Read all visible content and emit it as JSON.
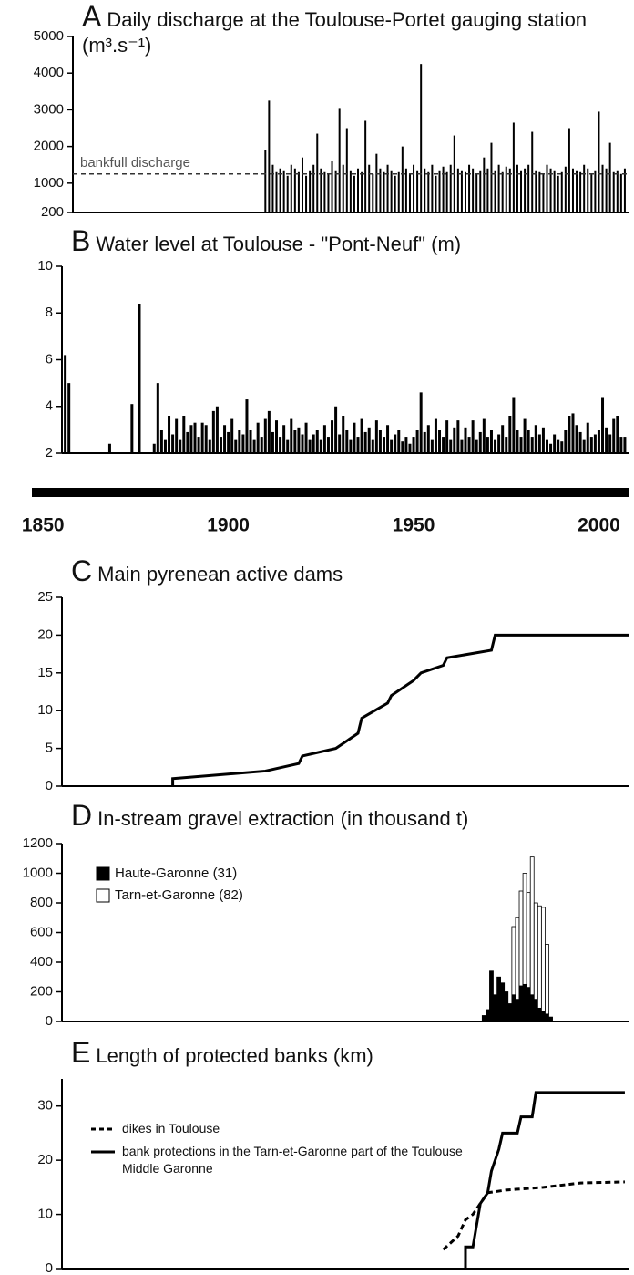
{
  "chart_data": [
    {
      "type": "bar",
      "panel": "A",
      "title": "Daily discharge at the Toulouse-Portet gauging station (m³.s⁻¹)",
      "color": "#000000",
      "xlim": [
        1847,
        2008
      ],
      "ylim": [
        200,
        5000
      ],
      "yticks": [
        200,
        1000,
        2000,
        3000,
        4000,
        5000
      ],
      "reference": {
        "label": "bankfull discharge",
        "value": 1250
      },
      "x": [
        1910,
        1911,
        1912,
        1913,
        1914,
        1915,
        1916,
        1917,
        1918,
        1919,
        1920,
        1921,
        1922,
        1923,
        1924,
        1925,
        1926,
        1927,
        1928,
        1929,
        1930,
        1931,
        1932,
        1933,
        1934,
        1935,
        1936,
        1937,
        1938,
        1939,
        1940,
        1941,
        1942,
        1943,
        1944,
        1945,
        1946,
        1947,
        1948,
        1949,
        1950,
        1951,
        1952,
        1953,
        1954,
        1955,
        1956,
        1957,
        1958,
        1959,
        1960,
        1961,
        1962,
        1963,
        1964,
        1965,
        1966,
        1967,
        1968,
        1969,
        1970,
        1971,
        1972,
        1973,
        1974,
        1975,
        1976,
        1977,
        1978,
        1979,
        1980,
        1981,
        1982,
        1983,
        1984,
        1985,
        1986,
        1987,
        1988,
        1989,
        1990,
        1991,
        1992,
        1993,
        1994,
        1995,
        1996,
        1997,
        1998,
        1999,
        2000,
        2001,
        2002,
        2003,
        2004,
        2005,
        2006,
        2007
      ],
      "values": [
        1900,
        3250,
        1500,
        1300,
        1400,
        1350,
        1200,
        1500,
        1400,
        1300,
        1700,
        1200,
        1350,
        1500,
        2350,
        1400,
        1300,
        1250,
        1600,
        1350,
        3050,
        1500,
        2500,
        1350,
        1200,
        1400,
        1300,
        2700,
        1500,
        1250,
        1800,
        1400,
        1300,
        1500,
        1350,
        1200,
        1300,
        2000,
        1400,
        1250,
        1500,
        1350,
        4250,
        1400,
        1300,
        1500,
        1200,
        1350,
        1450,
        1300,
        1500,
        2300,
        1400,
        1350,
        1300,
        1500,
        1400,
        1250,
        1350,
        1700,
        1400,
        2100,
        1350,
        1500,
        1300,
        1450,
        1400,
        2650,
        1500,
        1350,
        1400,
        1500,
        2400,
        1350,
        1300,
        1250,
        1500,
        1400,
        1350,
        1200,
        1300,
        1450,
        2500,
        1400,
        1350,
        1300,
        1500,
        1400,
        1250,
        1350,
        2950,
        1500,
        1400,
        2100,
        1300,
        1350,
        1250,
        1400
      ]
    },
    {
      "type": "bar",
      "panel": "B",
      "title": "Water level at Toulouse - \"Pont-Neuf\" (m)",
      "color": "#000000",
      "xlim": [
        1847,
        2008
      ],
      "ylim": [
        2,
        10
      ],
      "yticks": [
        2,
        4,
        6,
        8,
        10
      ],
      "x": [
        1856,
        1857,
        1868,
        1874,
        1876,
        1880,
        1881,
        1882,
        1883,
        1884,
        1885,
        1886,
        1887,
        1888,
        1889,
        1890,
        1891,
        1892,
        1893,
        1894,
        1895,
        1896,
        1897,
        1898,
        1899,
        1900,
        1901,
        1902,
        1903,
        1904,
        1905,
        1906,
        1907,
        1908,
        1909,
        1910,
        1911,
        1912,
        1913,
        1914,
        1915,
        1916,
        1917,
        1918,
        1919,
        1920,
        1921,
        1922,
        1923,
        1924,
        1925,
        1926,
        1927,
        1928,
        1929,
        1930,
        1931,
        1932,
        1933,
        1934,
        1935,
        1936,
        1937,
        1938,
        1939,
        1940,
        1941,
        1942,
        1943,
        1944,
        1945,
        1946,
        1947,
        1948,
        1949,
        1950,
        1951,
        1952,
        1953,
        1954,
        1955,
        1956,
        1957,
        1958,
        1959,
        1960,
        1961,
        1962,
        1963,
        1964,
        1965,
        1966,
        1967,
        1968,
        1969,
        1970,
        1971,
        1972,
        1973,
        1974,
        1975,
        1976,
        1977,
        1978,
        1979,
        1980,
        1981,
        1982,
        1983,
        1984,
        1985,
        1986,
        1987,
        1988,
        1989,
        1990,
        1991,
        1992,
        1993,
        1994,
        1995,
        1996,
        1997,
        1998,
        1999,
        2000,
        2001,
        2002,
        2003,
        2004,
        2005,
        2006,
        2007
      ],
      "values": [
        6.2,
        5.0,
        2.4,
        4.1,
        8.4,
        2.4,
        5.0,
        3.0,
        2.6,
        3.6,
        2.8,
        3.5,
        2.6,
        3.6,
        2.9,
        3.2,
        3.3,
        2.7,
        3.3,
        3.2,
        2.6,
        3.8,
        4.0,
        2.7,
        3.2,
        2.9,
        3.5,
        2.6,
        3.0,
        2.8,
        4.3,
        3.0,
        2.6,
        3.3,
        2.7,
        3.5,
        3.8,
        2.9,
        3.4,
        2.7,
        3.2,
        2.6,
        3.5,
        3.0,
        3.1,
        2.8,
        3.3,
        2.6,
        2.8,
        3.0,
        2.6,
        3.2,
        2.7,
        3.4,
        4.0,
        2.8,
        3.6,
        3.0,
        2.6,
        3.3,
        2.7,
        3.5,
        2.9,
        3.1,
        2.6,
        3.4,
        3.0,
        2.7,
        3.2,
        2.6,
        2.8,
        3.0,
        2.5,
        2.7,
        2.4,
        2.7,
        3.0,
        4.6,
        2.9,
        3.2,
        2.6,
        3.5,
        3.0,
        2.7,
        3.4,
        2.6,
        3.1,
        3.4,
        2.6,
        3.1,
        2.7,
        3.4,
        2.6,
        2.9,
        3.5,
        2.7,
        3.0,
        2.6,
        2.8,
        3.2,
        2.7,
        3.6,
        4.4,
        3.0,
        2.7,
        3.5,
        3.0,
        2.7,
        3.2,
        2.8,
        3.1,
        2.6,
        2.4,
        2.8,
        2.6,
        2.5,
        3.0,
        3.6,
        3.7,
        3.2,
        2.9,
        2.6,
        3.3,
        2.7,
        2.8,
        3.0,
        4.4,
        3.1,
        2.8,
        3.5,
        3.6,
        2.7,
        2.7
      ]
    },
    {
      "type": "axis",
      "xlim": [
        1847,
        2008
      ],
      "xticks": [
        1850,
        1900,
        1950,
        2000
      ]
    },
    {
      "type": "line",
      "panel": "C",
      "title": "Main pyrenean active dams",
      "xlim": [
        1847,
        2008
      ],
      "ylim": [
        0,
        25
      ],
      "yticks": [
        0,
        5,
        10,
        15,
        20,
        25
      ],
      "series": [
        {
          "color": "#000000",
          "x": [
            1885,
            1885,
            1910,
            1919,
            1920,
            1929,
            1935,
            1936,
            1943,
            1944,
            1950,
            1952,
            1958,
            1959,
            1971,
            1972,
            2008
          ],
          "values": [
            0,
            1,
            2,
            3,
            4,
            5,
            7,
            9,
            11,
            12,
            14,
            15,
            16,
            17,
            18,
            20,
            20
          ]
        }
      ]
    },
    {
      "type": "stacked_bar",
      "panel": "D",
      "title": "In-stream gravel extraction (in thousand t)",
      "xlim": [
        1847,
        2008
      ],
      "ylim": [
        0,
        1200
      ],
      "yticks": [
        0,
        200,
        400,
        600,
        800,
        1000,
        1200
      ],
      "x": [
        1969,
        1970,
        1971,
        1972,
        1973,
        1974,
        1975,
        1976,
        1977,
        1978,
        1979,
        1980,
        1981,
        1982,
        1983,
        1984,
        1985,
        1986,
        1987
      ],
      "series": [
        {
          "name": "Haute-Garonne (31)",
          "color": "#000000",
          "values": [
            40,
            80,
            340,
            180,
            300,
            260,
            200,
            120,
            180,
            150,
            240,
            250,
            230,
            180,
            150,
            90,
            70,
            50,
            30
          ]
        },
        {
          "name": "Tarn-et-Garonne (82)",
          "color": "#ffffff",
          "values": [
            0,
            0,
            0,
            0,
            0,
            0,
            0,
            0,
            460,
            550,
            640,
            750,
            640,
            930,
            650,
            690,
            700,
            470,
            0
          ]
        }
      ]
    },
    {
      "type": "line",
      "panel": "E",
      "title": "Length of protected banks (km)",
      "xlim": [
        1847,
        2008
      ],
      "ylim": [
        0,
        35
      ],
      "yticks": [
        0,
        10,
        20,
        30
      ],
      "series": [
        {
          "name": "dikes in Toulouse",
          "color": "#000000",
          "dashed": true,
          "x": [
            1958,
            1962,
            1964,
            1966,
            1968,
            1970,
            1975,
            1985,
            1995,
            2007
          ],
          "values": [
            3.5,
            6,
            9,
            10,
            12,
            14,
            14.5,
            15,
            15.8,
            16
          ]
        },
        {
          "name": "bank protections in the Tarn-et-Garonne part of the Toulouse Middle Garonne",
          "color": "#000000",
          "dashed": false,
          "x": [
            1964,
            1964,
            1966,
            1967,
            1968,
            1970,
            1971,
            1973,
            1974,
            1978,
            1979,
            1982,
            1983,
            2007
          ],
          "values": [
            0,
            4,
            4,
            8,
            12,
            14,
            18,
            22,
            25,
            25,
            28,
            28,
            32.5,
            32.5
          ]
        }
      ]
    }
  ]
}
